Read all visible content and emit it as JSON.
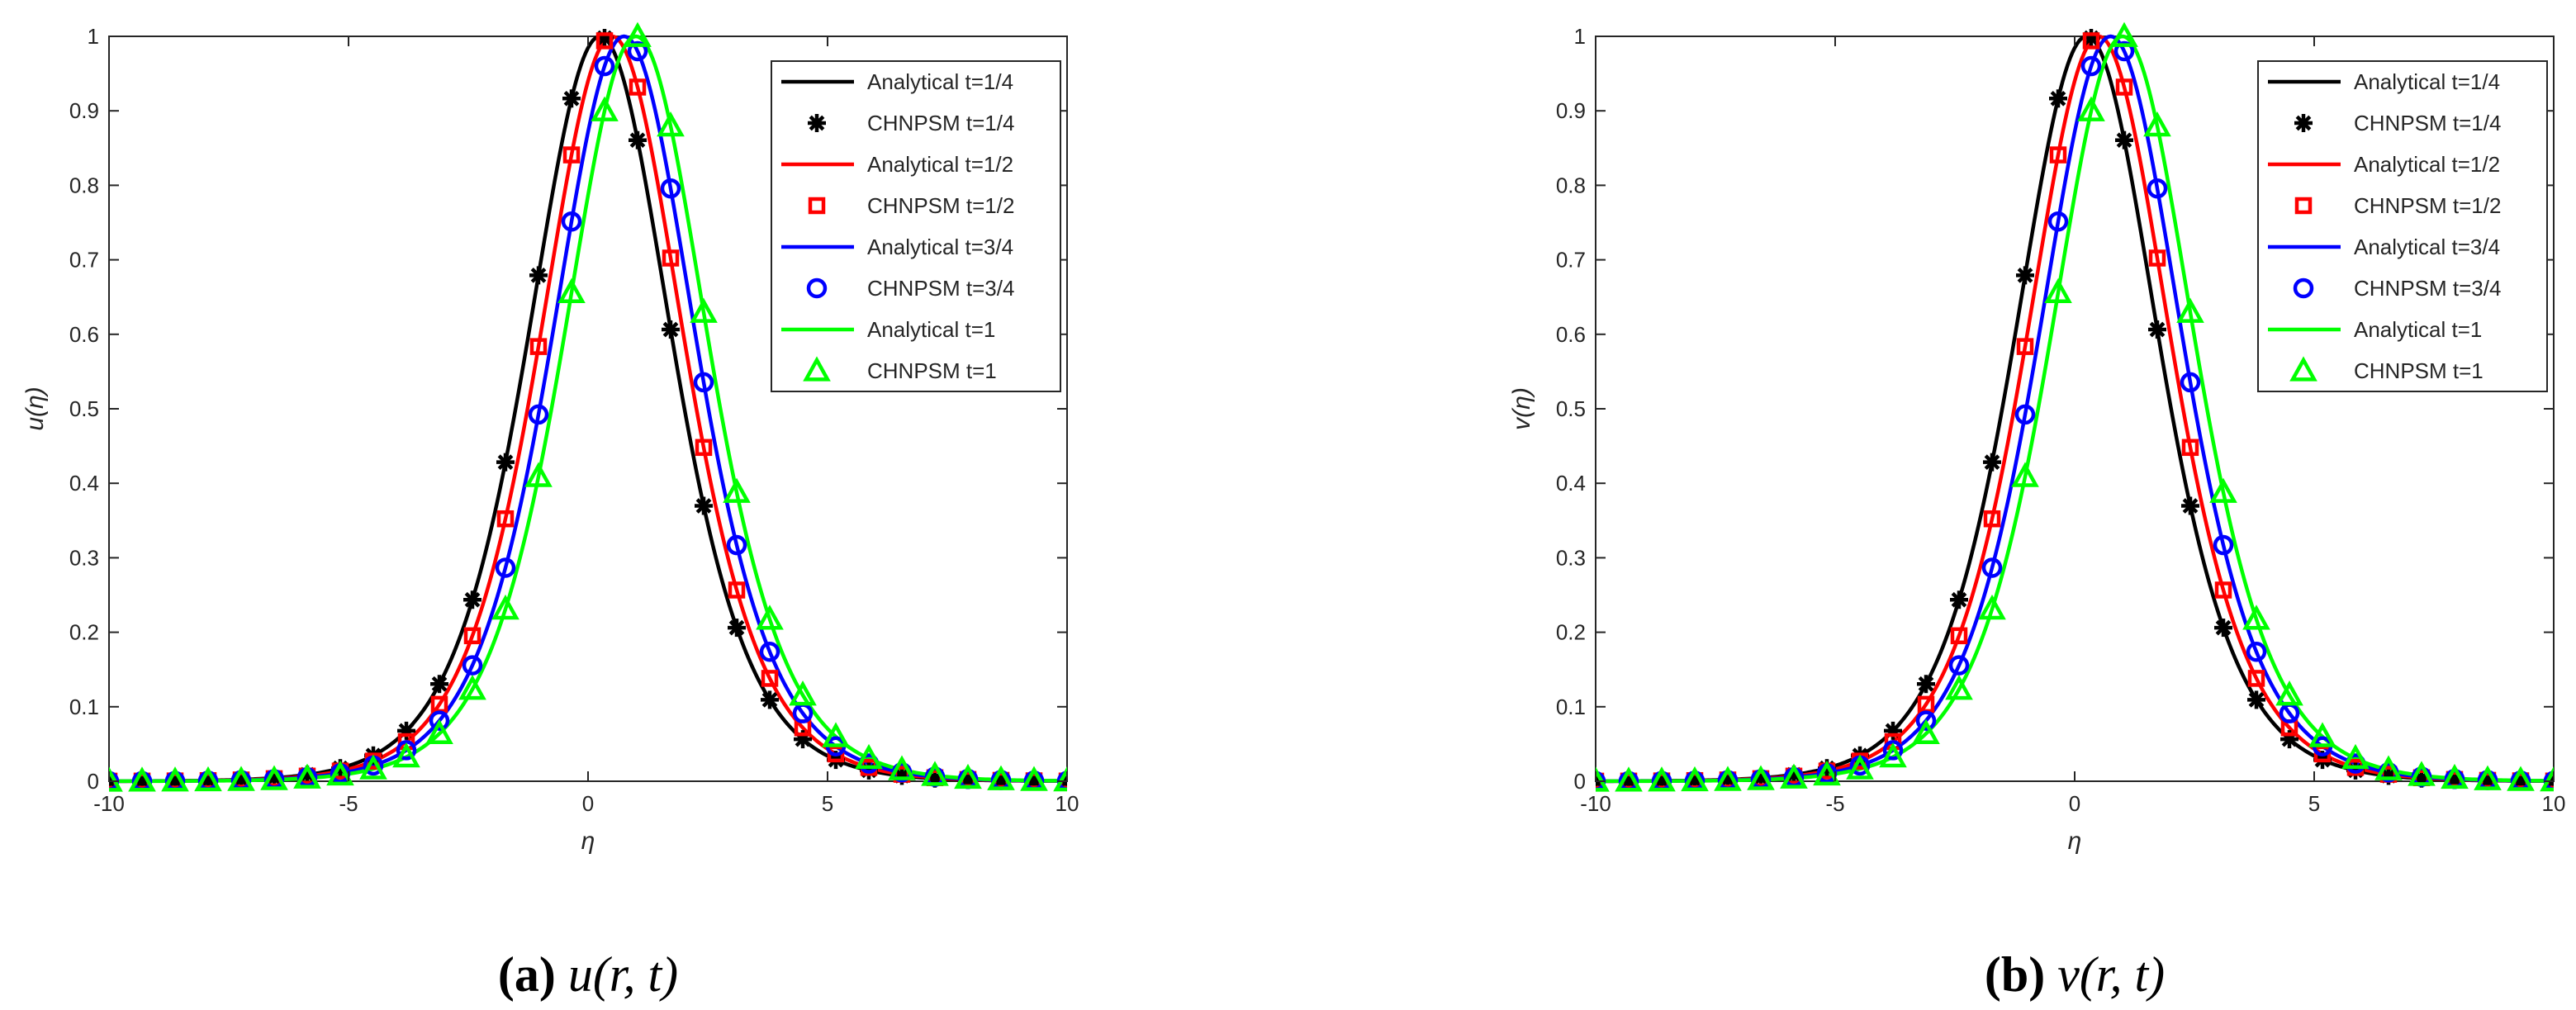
{
  "figure": {
    "panels": [
      {
        "caption_label": "(a)",
        "caption_text": "u(r, t)",
        "ylabel": "u(η)",
        "xlabel": "η"
      },
      {
        "caption_label": "(b)",
        "caption_text": "v(r, t)",
        "ylabel": "v(η)",
        "xlabel": "η"
      }
    ]
  },
  "chart_data": [
    {
      "type": "line",
      "xlabel": "η",
      "ylabel": "u(η)",
      "xlim": [
        -10,
        10
      ],
      "ylim": [
        0,
        1
      ],
      "xticks": [
        -10,
        -5,
        0,
        5,
        10
      ],
      "yticks": [
        0,
        0.1,
        0.2,
        0.3,
        0.4,
        0.5,
        0.6,
        0.7,
        0.8,
        0.9,
        1
      ],
      "grid": false,
      "legend_position": "top-right",
      "model": "sech^2((x - c)/2), sampled at 30 points on [-10, 10]",
      "series": [
        {
          "name": "Analytical t=1/4",
          "kind": "line",
          "color": "#000000",
          "center": 0.25
        },
        {
          "name": "CHNPSM t=1/4",
          "kind": "markers",
          "marker": "asterisk",
          "color": "#000000",
          "center": 0.25
        },
        {
          "name": "Analytical t=1/2",
          "kind": "line",
          "color": "#ff0000",
          "center": 0.5
        },
        {
          "name": "CHNPSM t=1/2",
          "kind": "markers",
          "marker": "square",
          "color": "#ff0000",
          "center": 0.5
        },
        {
          "name": "Analytical t=3/4",
          "kind": "line",
          "color": "#0000ff",
          "center": 0.75
        },
        {
          "name": "CHNPSM t=3/4",
          "kind": "markers",
          "marker": "circle",
          "color": "#0000ff",
          "center": 0.75
        },
        {
          "name": "Analytical t=1",
          "kind": "line",
          "color": "#00ff00",
          "center": 1.0
        },
        {
          "name": "CHNPSM t=1",
          "kind": "markers",
          "marker": "triangle",
          "color": "#00ff00",
          "center": 1.0
        }
      ]
    },
    {
      "type": "line",
      "xlabel": "η",
      "ylabel": "v(η)",
      "xlim": [
        -10,
        10
      ],
      "ylim": [
        0,
        1
      ],
      "xticks": [
        -10,
        -5,
        0,
        5,
        10
      ],
      "yticks": [
        0,
        0.1,
        0.2,
        0.3,
        0.4,
        0.5,
        0.6,
        0.7,
        0.8,
        0.9,
        1
      ],
      "grid": false,
      "legend_position": "top-right",
      "model": "sech^2((x - c)/2), sampled at 30 points on [-10, 10]",
      "series": [
        {
          "name": "Analytical t=1/4",
          "kind": "line",
          "color": "#000000",
          "center": 0.25
        },
        {
          "name": "CHNPSM t=1/4",
          "kind": "markers",
          "marker": "asterisk",
          "color": "#000000",
          "center": 0.25
        },
        {
          "name": "Analytical t=1/2",
          "kind": "line",
          "color": "#ff0000",
          "center": 0.5
        },
        {
          "name": "CHNPSM t=1/2",
          "kind": "markers",
          "marker": "square",
          "color": "#ff0000",
          "center": 0.5
        },
        {
          "name": "Analytical t=3/4",
          "kind": "line",
          "color": "#0000ff",
          "center": 0.75
        },
        {
          "name": "CHNPSM t=3/4",
          "kind": "markers",
          "marker": "circle",
          "color": "#0000ff",
          "center": 0.75
        },
        {
          "name": "Analytical t=1",
          "kind": "line",
          "color": "#00ff00",
          "center": 1.0
        },
        {
          "name": "CHNPSM t=1",
          "kind": "markers",
          "marker": "triangle",
          "color": "#00ff00",
          "center": 1.0
        }
      ]
    }
  ]
}
